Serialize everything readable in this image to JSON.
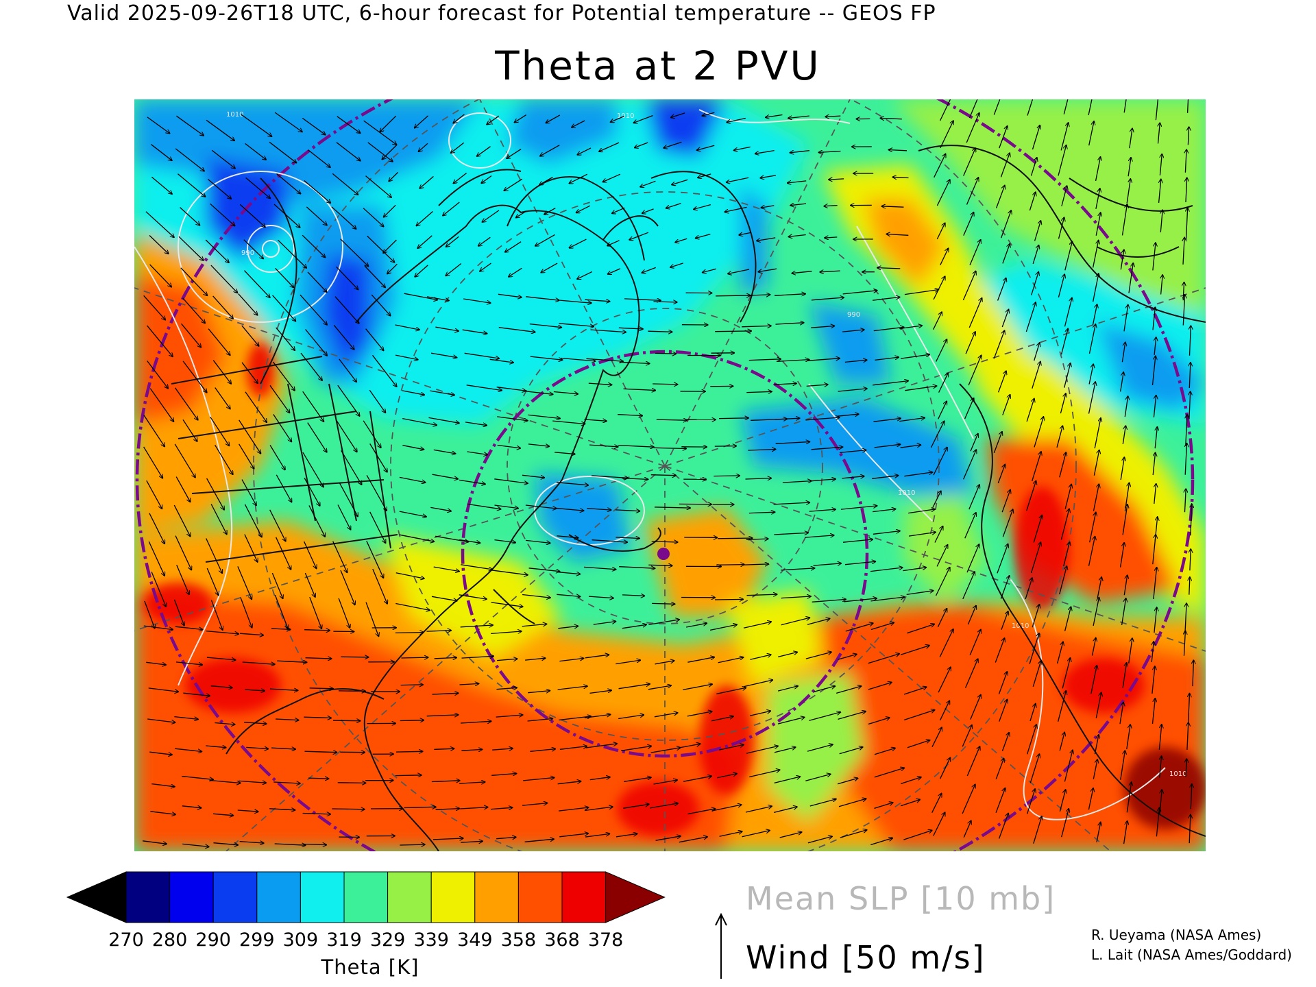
{
  "header": "Valid 2025-09-26T18 UTC, 6-hour forecast for Potential temperature -- GEOS FP",
  "title": "Theta at 2 PVU",
  "colorbar": {
    "title": "Theta [K]",
    "labels": [
      "270",
      "280",
      "290",
      "299",
      "309",
      "319",
      "329",
      "339",
      "349",
      "358",
      "368",
      "378"
    ],
    "colors": [
      "#000000",
      "#000080",
      "#0000ee",
      "#0a3cf0",
      "#0a9cf0",
      "#10eeee",
      "#3cf09a",
      "#96f046",
      "#eef000",
      "#ffa000",
      "#ff5000",
      "#ee0000",
      "#8a0000"
    ]
  },
  "legend": {
    "slp": "Mean SLP [10 mb]",
    "wind": "Wind [50 m/s]"
  },
  "credits": [
    "R. Ueyama (NASA Ames)",
    "L. Lait (NASA Ames/Goddard)"
  ],
  "map": {
    "projection": "polar stereographic",
    "isobar_labels": [
      "1010",
      "1010",
      "990",
      "1010",
      "990",
      "1010",
      "1010"
    ],
    "colors": {
      "circle": "#7a0a8c",
      "coast": "#111111",
      "grid": "#555555",
      "isobar": "#e8e8e8",
      "marker": "#7a0a8c"
    }
  }
}
